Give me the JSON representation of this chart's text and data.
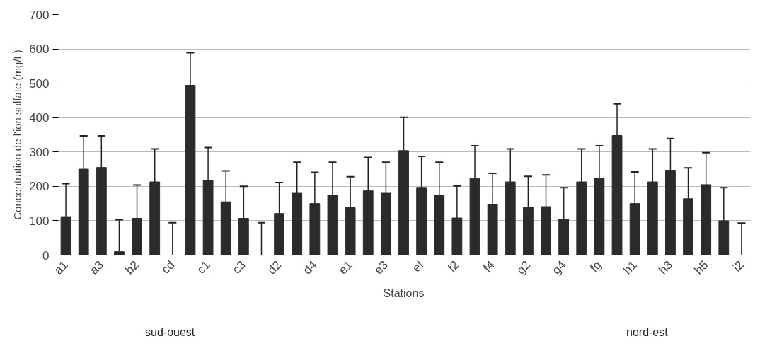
{
  "chart_data": {
    "type": "bar",
    "xlabel": "Stations",
    "ylabel": "Concentration de l'ion sulfate (mg/L)",
    "categories": [
      "a1",
      null,
      "a3",
      null,
      "b2",
      null,
      "cd",
      null,
      "c1",
      null,
      "c3",
      null,
      "d2",
      null,
      "d4",
      null,
      "e1",
      null,
      "e3",
      null,
      "ef",
      null,
      "f2",
      null,
      "f4",
      null,
      "g2",
      null,
      "g4",
      null,
      "fg",
      null,
      "h1",
      null,
      "h3",
      null,
      "h5",
      null,
      "i2"
    ],
    "values": [
      112,
      250,
      255,
      10,
      107,
      213,
      0,
      494,
      217,
      155,
      107,
      0,
      121,
      180,
      150,
      174,
      138,
      187,
      180,
      304,
      197,
      174,
      108,
      223,
      147,
      213,
      139,
      141,
      104,
      213,
      224,
      348,
      150,
      213,
      247,
      164,
      205,
      100,
      0
    ],
    "errors": [
      [
        112,
        208
      ],
      [
        250,
        347
      ],
      [
        255,
        347
      ],
      [
        10,
        103
      ],
      [
        107,
        204
      ],
      [
        213,
        309
      ],
      [
        0,
        94
      ],
      [
        494,
        589
      ],
      [
        217,
        313
      ],
      [
        155,
        245
      ],
      [
        107,
        200
      ],
      [
        0,
        94
      ],
      [
        121,
        211
      ],
      [
        180,
        270
      ],
      [
        150,
        241
      ],
      [
        174,
        270
      ],
      [
        138,
        228
      ],
      [
        187,
        284
      ],
      [
        180,
        270
      ],
      [
        304,
        401
      ],
      [
        197,
        287
      ],
      [
        174,
        270
      ],
      [
        108,
        201
      ],
      [
        223,
        318
      ],
      [
        147,
        238
      ],
      [
        213,
        309
      ],
      [
        139,
        229
      ],
      [
        141,
        233
      ],
      [
        104,
        196
      ],
      [
        213,
        309
      ],
      [
        224,
        318
      ],
      [
        348,
        440
      ],
      [
        150,
        242
      ],
      [
        213,
        309
      ],
      [
        247,
        339
      ],
      [
        164,
        254
      ],
      [
        205,
        298
      ],
      [
        100,
        196
      ],
      [
        0,
        93
      ]
    ],
    "color": "#2b2b2b",
    "ylim": [
      0,
      700
    ],
    "yticks": [
      0,
      100,
      200,
      300,
      400,
      500,
      600,
      700
    ],
    "grid": "y",
    "annotations": [
      "sud-ouest",
      "nord-est"
    ]
  }
}
